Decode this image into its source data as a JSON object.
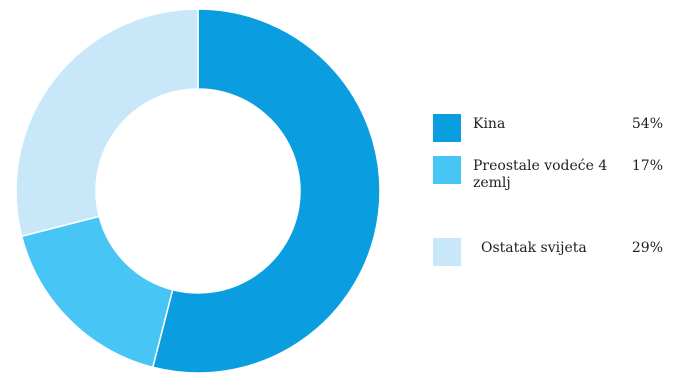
{
  "chart_data": {
    "type": "pie",
    "donut": true,
    "title": "",
    "legend_position": "right",
    "categories": [
      "Kina",
      "Preostale vodeće 4 zemlj",
      "Ostatak svijeta"
    ],
    "values": [
      54,
      17,
      29
    ],
    "value_labels": [
      "54%",
      "17%",
      "29%"
    ],
    "colors": [
      "#0a9ddf",
      "#47c5f4",
      "#c8e8fa"
    ]
  },
  "legend": {
    "items": [
      {
        "label": "Kina",
        "value": "54%"
      },
      {
        "label": "Preostale vodeće 4 zemlj",
        "value": "17%"
      },
      {
        "label": "Ostatak svijeta",
        "value": "29%"
      }
    ]
  }
}
